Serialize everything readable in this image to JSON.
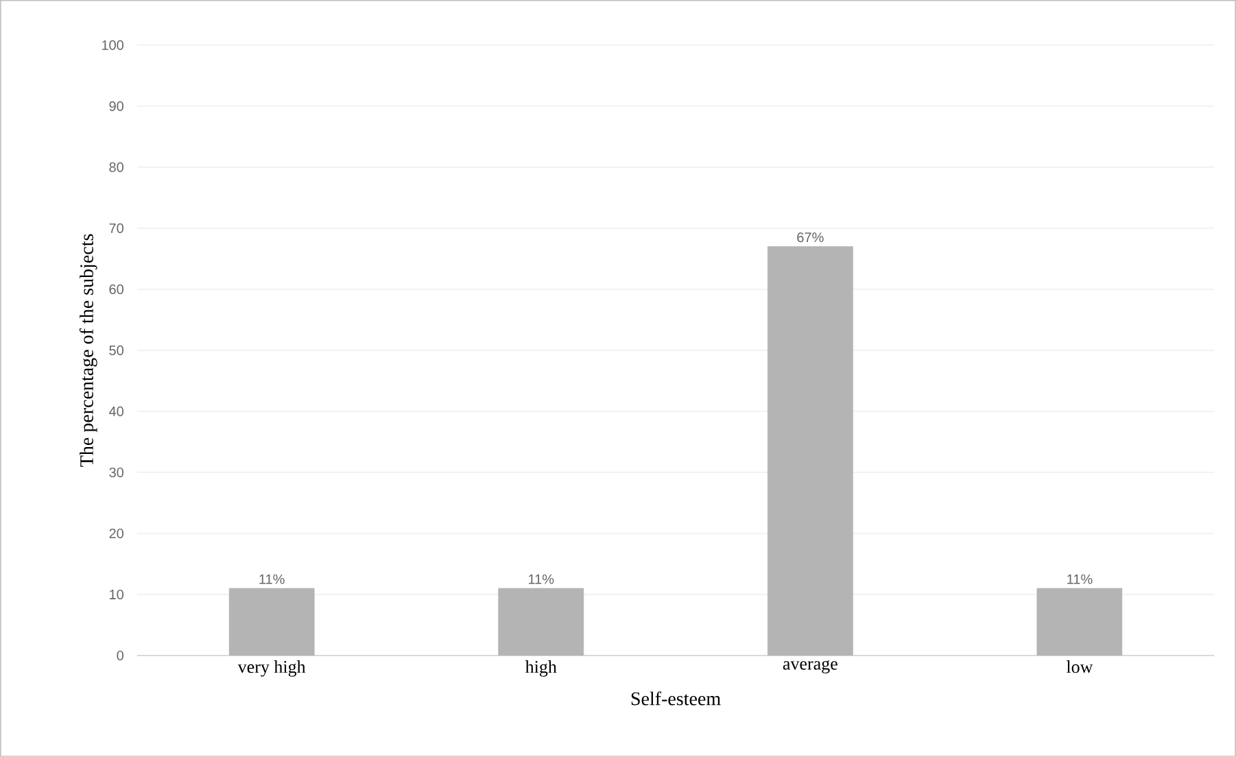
{
  "chart_data": {
    "type": "bar",
    "xlabel": "Self-esteem",
    "ylabel": "The percentage of the subjects",
    "categories": [
      "very high",
      "high",
      "average",
      "low"
    ],
    "values": [
      11,
      11,
      67,
      11
    ],
    "value_labels": [
      "11%",
      "11%",
      "67%",
      "11%"
    ],
    "color": "#b4b4b4",
    "ylim": [
      0,
      100
    ],
    "yticks": [
      0,
      10,
      20,
      30,
      40,
      50,
      60,
      70,
      80,
      90,
      100
    ],
    "grid": "y"
  }
}
